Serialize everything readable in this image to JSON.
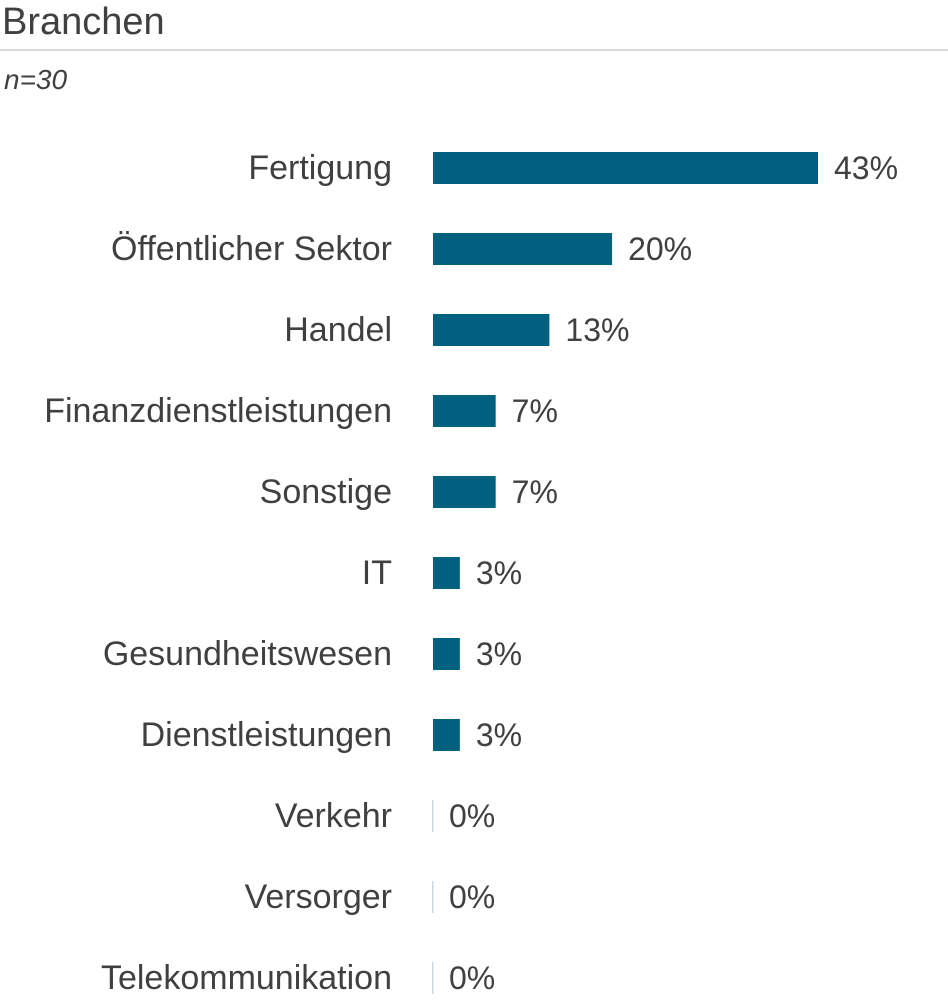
{
  "header": {
    "title": "Branchen",
    "subtitle": "n=30"
  },
  "colors": {
    "bar": "#00607f",
    "zero_tick": "#c9d9e3",
    "text": "#404040"
  },
  "chart_data": {
    "type": "bar",
    "orientation": "horizontal",
    "title": "Branchen",
    "subtitle": "n=30",
    "categories": [
      "Fertigung",
      "Öffentlicher Sektor",
      "Handel",
      "Finanzdienstleistungen",
      "Sonstige",
      "IT",
      "Gesundheitswesen",
      "Dienstleistungen",
      "Verkehr",
      "Versorger",
      "Telekommunikation"
    ],
    "values": [
      43,
      20,
      13,
      7,
      7,
      3,
      3,
      3,
      0,
      0,
      0
    ],
    "value_labels": [
      "43%",
      "20%",
      "13%",
      "7%",
      "7%",
      "3%",
      "3%",
      "3%",
      "0%",
      "0%",
      "0%"
    ],
    "unit": "%",
    "xlim": [
      0,
      43
    ],
    "grid": false,
    "legend": "none"
  }
}
